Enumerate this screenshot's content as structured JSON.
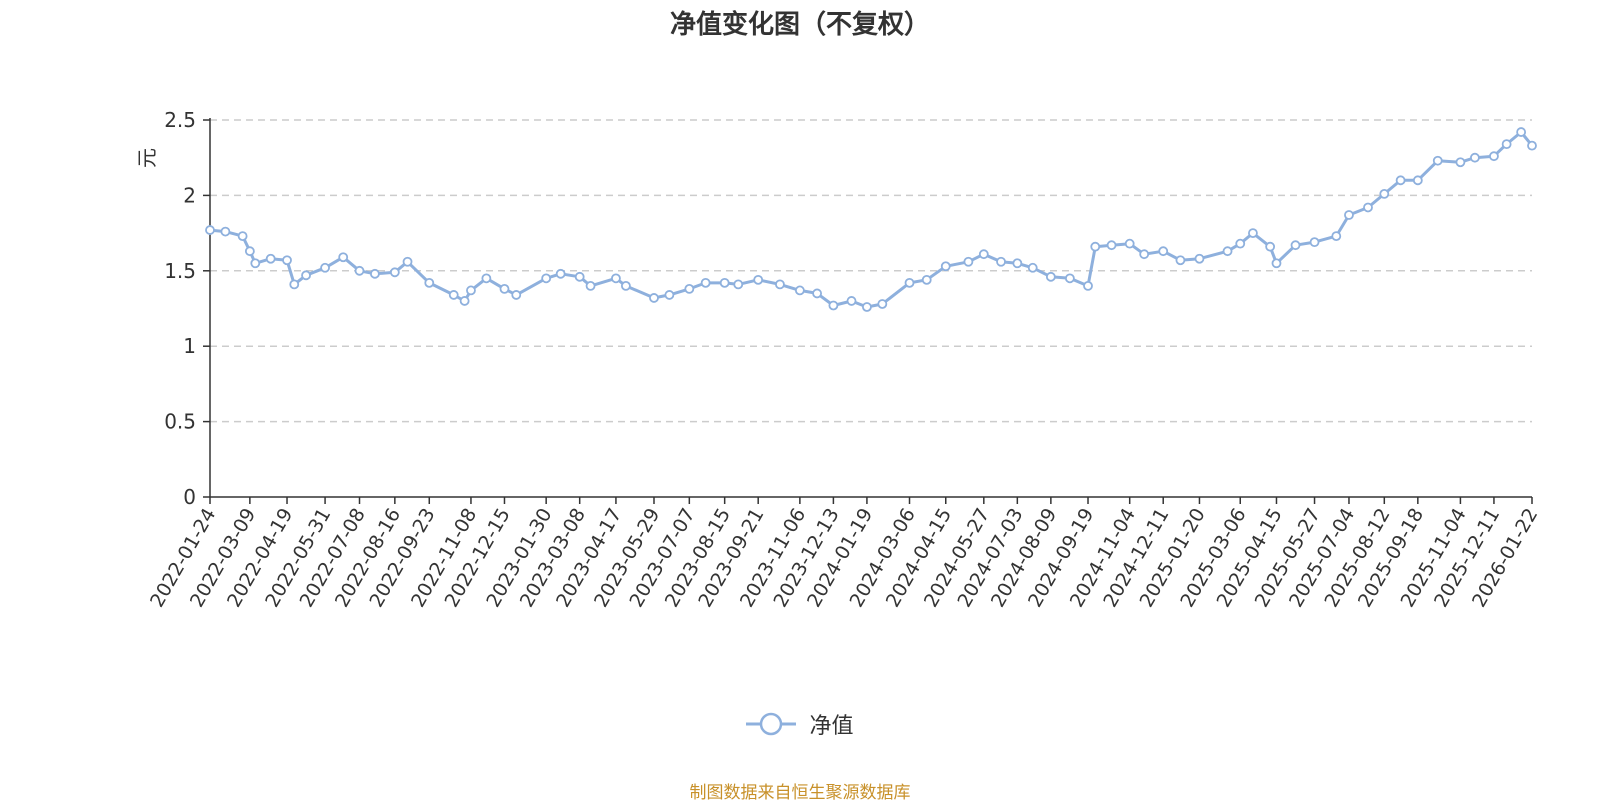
{
  "colors": {
    "line": "#8EB0DD",
    "grid": "#CCCCCC",
    "axis": "#333333",
    "ylabel": "#E8341C",
    "source": "#C8912A"
  },
  "chart_data": {
    "type": "line",
    "title": "净值变化图（不复权）",
    "ylabel": "元",
    "ylim": [
      0,
      2.5
    ],
    "yticks": [
      "0",
      "0.5",
      "1",
      "1.5",
      "2",
      "2.5"
    ],
    "grid": true,
    "legend_position": "bottom-center",
    "x_ticks": [
      "2022-01-24",
      "2022-03-09",
      "2022-04-19",
      "2022-05-31",
      "2022-07-08",
      "2022-08-16",
      "2022-09-23",
      "2022-11-08",
      "2022-12-15",
      "2023-01-30",
      "2023-03-08",
      "2023-04-17",
      "2023-05-29",
      "2023-07-07",
      "2023-08-15",
      "2023-09-21",
      "2023-11-06",
      "2023-12-13",
      "2024-01-19",
      "2024-03-06",
      "2024-04-15",
      "2024-05-27",
      "2024-07-03",
      "2024-08-09",
      "2024-09-19",
      "2024-11-04",
      "2024-12-11",
      "2025-01-20",
      "2025-03-06",
      "2025-04-15",
      "2025-05-27",
      "2025-07-04",
      "2025-08-12",
      "2025-09-18",
      "2025-11-04",
      "2025-12-11",
      "2026-01-22"
    ],
    "series": [
      {
        "name": "净值",
        "x": [
          "2022-01-24",
          "2022-02-10",
          "2022-03-01",
          "2022-03-09",
          "2022-03-15",
          "2022-04-01",
          "2022-04-19",
          "2022-04-27",
          "2022-05-10",
          "2022-05-31",
          "2022-06-20",
          "2022-07-08",
          "2022-07-25",
          "2022-08-16",
          "2022-08-30",
          "2022-09-23",
          "2022-10-20",
          "2022-11-01",
          "2022-11-08",
          "2022-11-25",
          "2022-12-15",
          "2022-12-28",
          "2023-01-30",
          "2023-02-15",
          "2023-03-08",
          "2023-03-20",
          "2023-04-17",
          "2023-04-28",
          "2023-05-29",
          "2023-06-15",
          "2023-07-07",
          "2023-07-25",
          "2023-08-15",
          "2023-08-30",
          "2023-09-21",
          "2023-10-15",
          "2023-11-06",
          "2023-11-25",
          "2023-12-13",
          "2024-01-02",
          "2024-01-19",
          "2024-02-05",
          "2024-03-06",
          "2024-03-25",
          "2024-04-15",
          "2024-05-10",
          "2024-05-27",
          "2024-06-15",
          "2024-07-03",
          "2024-07-20",
          "2024-08-09",
          "2024-08-30",
          "2024-09-19",
          "2024-09-27",
          "2024-10-15",
          "2024-11-04",
          "2024-11-20",
          "2024-12-11",
          "2024-12-30",
          "2025-01-20",
          "2025-02-20",
          "2025-03-06",
          "2025-03-20",
          "2025-04-08",
          "2025-04-15",
          "2025-05-06",
          "2025-05-27",
          "2025-06-20",
          "2025-07-04",
          "2025-07-25",
          "2025-08-12",
          "2025-08-30",
          "2025-09-18",
          "2025-10-10",
          "2025-11-04",
          "2025-11-20",
          "2025-12-11",
          "2025-12-25",
          "2026-01-10",
          "2026-01-22"
        ],
        "y": [
          1.77,
          1.76,
          1.73,
          1.63,
          1.55,
          1.58,
          1.57,
          1.41,
          1.47,
          1.52,
          1.59,
          1.5,
          1.48,
          1.49,
          1.56,
          1.42,
          1.34,
          1.3,
          1.37,
          1.45,
          1.38,
          1.34,
          1.45,
          1.48,
          1.46,
          1.4,
          1.45,
          1.4,
          1.32,
          1.34,
          1.38,
          1.42,
          1.42,
          1.41,
          1.44,
          1.41,
          1.37,
          1.35,
          1.27,
          1.3,
          1.26,
          1.28,
          1.42,
          1.44,
          1.53,
          1.56,
          1.61,
          1.56,
          1.55,
          1.52,
          1.46,
          1.45,
          1.4,
          1.66,
          1.67,
          1.68,
          1.61,
          1.63,
          1.57,
          1.58,
          1.63,
          1.68,
          1.75,
          1.66,
          1.55,
          1.67,
          1.69,
          1.73,
          1.87,
          1.92,
          2.01,
          2.1,
          2.1,
          2.23,
          2.22,
          2.25,
          2.26,
          2.34,
          2.42,
          2.33
        ]
      }
    ]
  },
  "legend": {
    "label": "净值"
  },
  "source_note": "制图数据来自恒生聚源数据库"
}
